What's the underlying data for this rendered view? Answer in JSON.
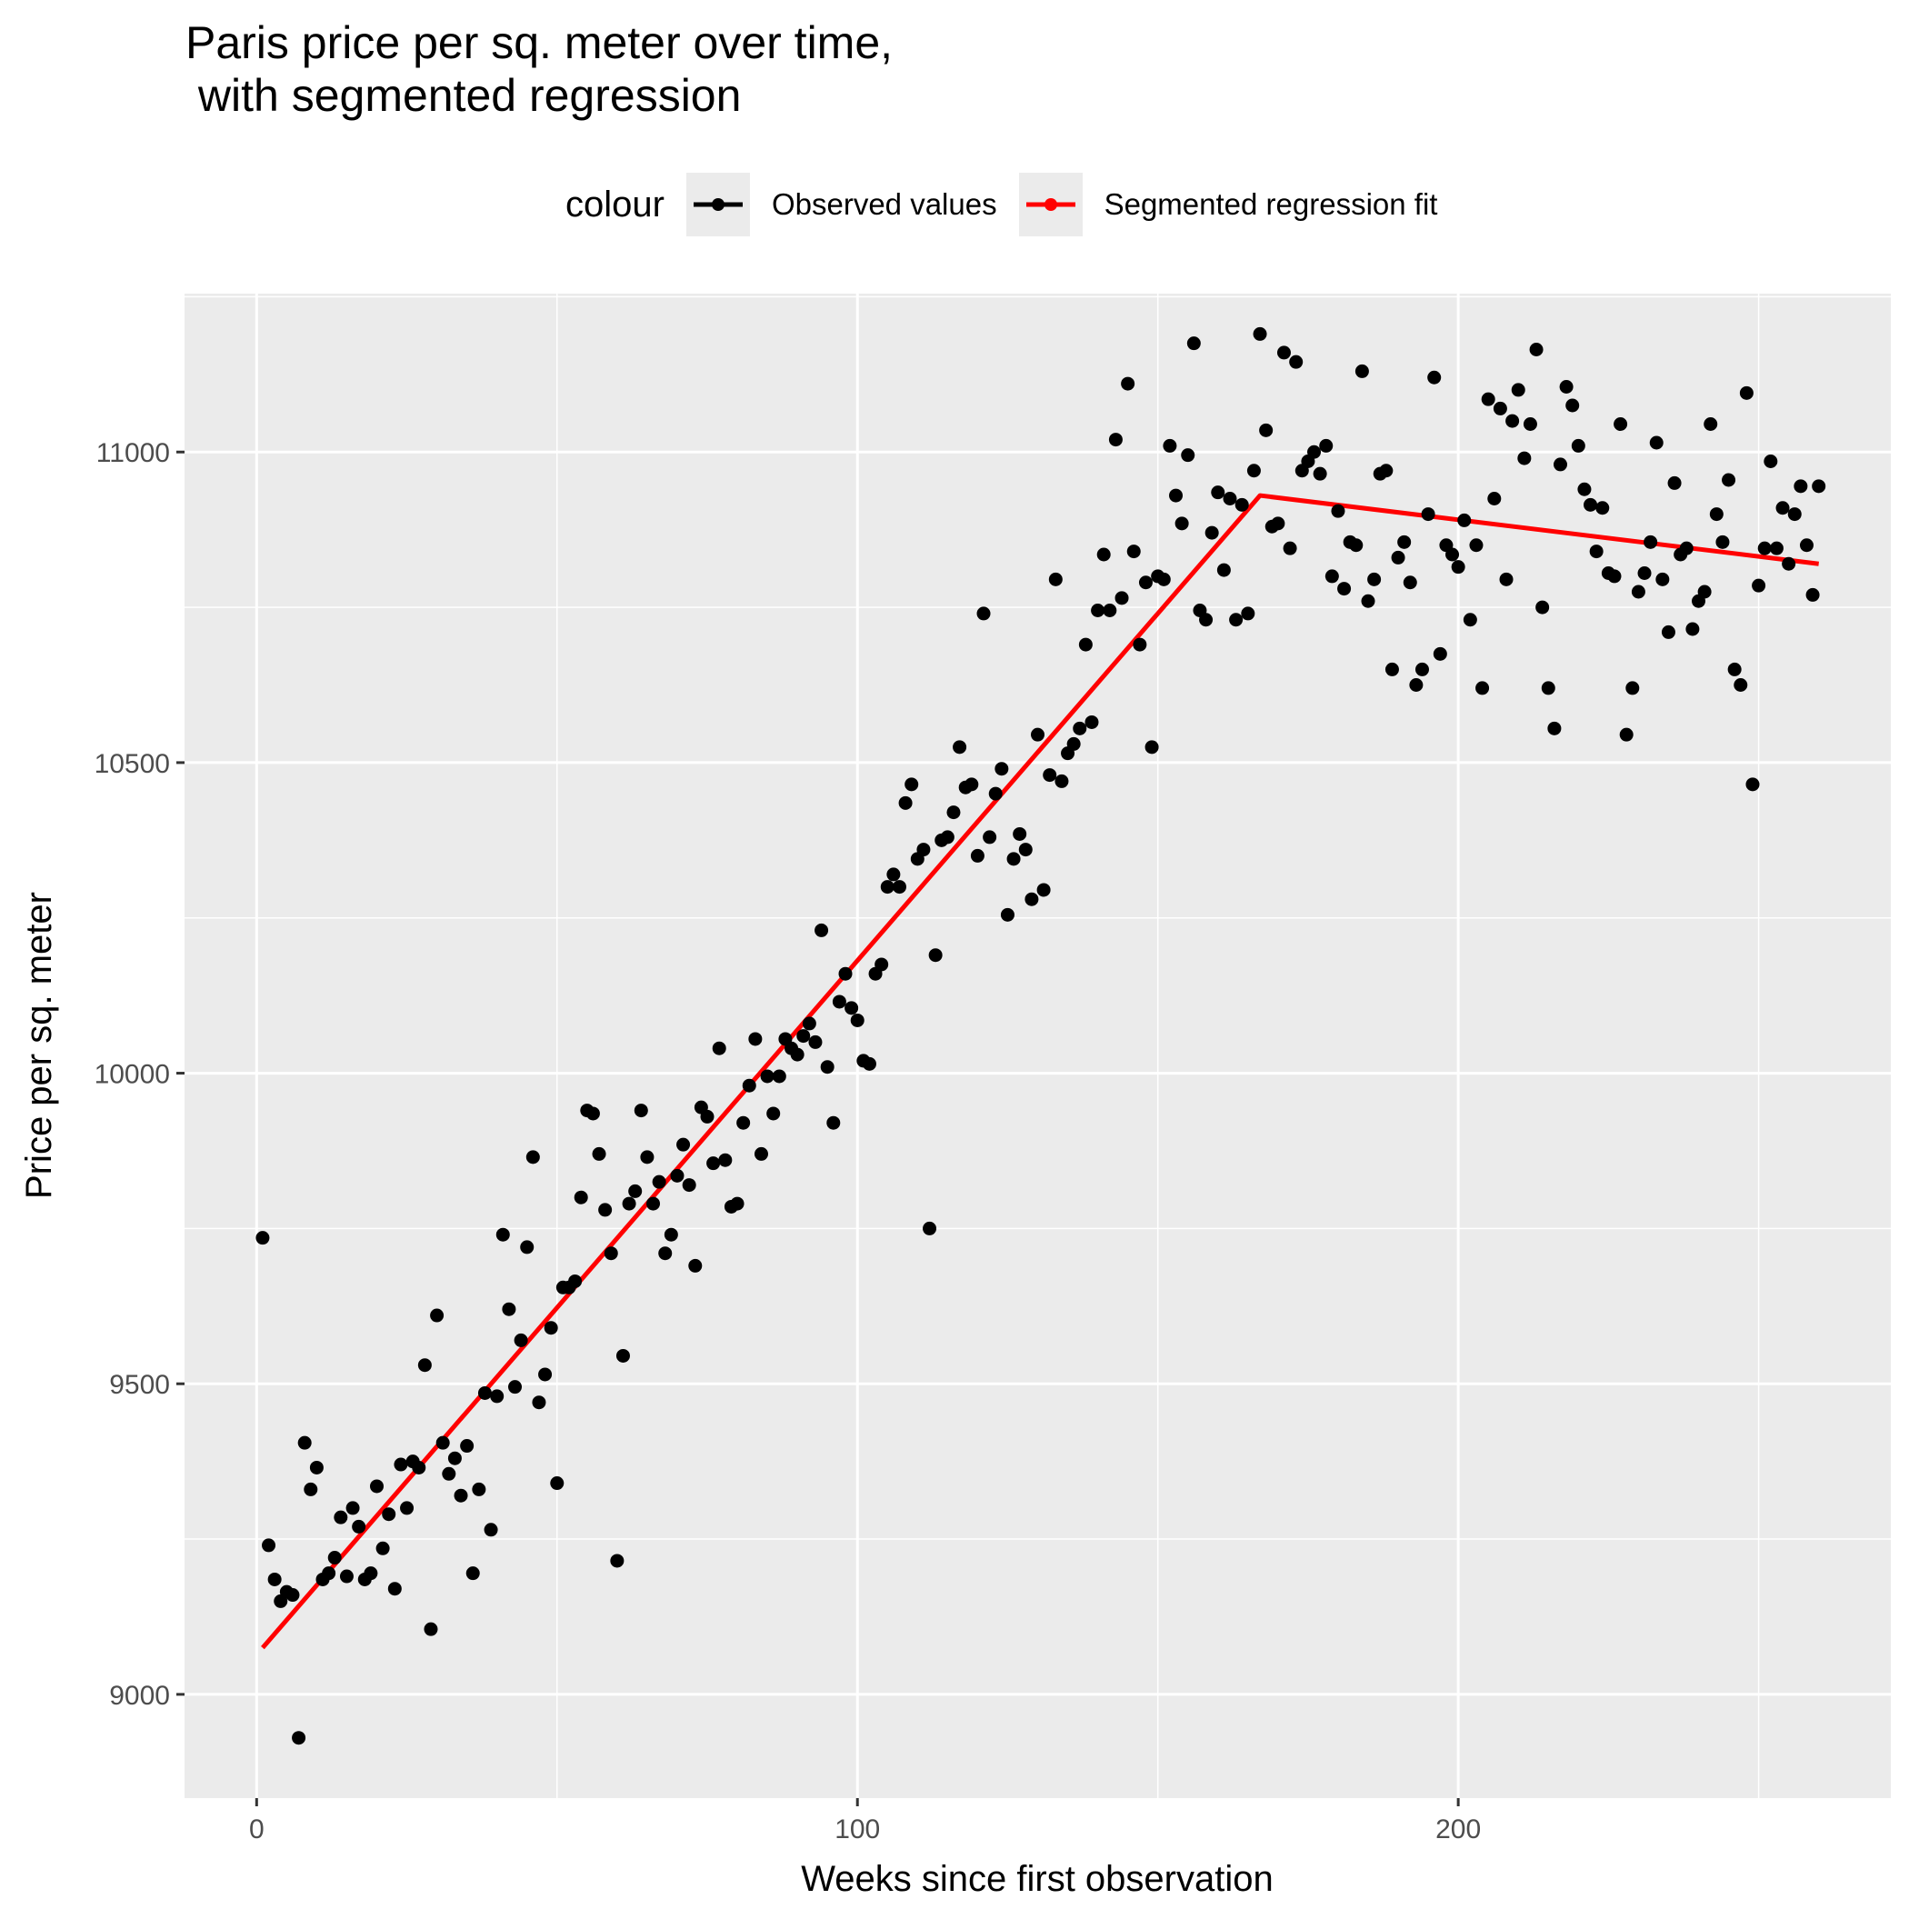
{
  "chart_data": {
    "type": "scatter",
    "title": "Paris price per sq. meter over time,\n with segmented regression",
    "xlabel": "Weeks since first observation",
    "ylabel": "Price per sq. meter",
    "xlim": [
      -12,
      272
    ],
    "ylim": [
      8833,
      11255
    ],
    "x_ticks": [
      0,
      100,
      200
    ],
    "y_ticks": [
      9000,
      9500,
      10000,
      10500,
      11000
    ],
    "grid": true,
    "legend": {
      "title": "colour",
      "position": "top",
      "entries": [
        {
          "label": "Observed values",
          "color": "#000000"
        },
        {
          "label": "Segmented regression fit",
          "color": "#ff0000"
        }
      ]
    },
    "series": [
      {
        "name": "Observed values",
        "color": "#000000",
        "points": [
          [
            1,
            9735
          ],
          [
            2,
            9240
          ],
          [
            3,
            9185
          ],
          [
            4,
            9150
          ],
          [
            5,
            9165
          ],
          [
            6,
            9160
          ],
          [
            7,
            8930
          ],
          [
            8,
            9405
          ],
          [
            9,
            9330
          ],
          [
            10,
            9365
          ],
          [
            11,
            9185
          ],
          [
            12,
            9195
          ],
          [
            13,
            9220
          ],
          [
            14,
            9285
          ],
          [
            15,
            9190
          ],
          [
            16,
            9300
          ],
          [
            17,
            9270
          ],
          [
            18,
            9185
          ],
          [
            19,
            9195
          ],
          [
            20,
            9335
          ],
          [
            21,
            9235
          ],
          [
            22,
            9290
          ],
          [
            23,
            9170
          ],
          [
            24,
            9370
          ],
          [
            25,
            9300
          ],
          [
            26,
            9375
          ],
          [
            27,
            9365
          ],
          [
            28,
            9530
          ],
          [
            29,
            9105
          ],
          [
            30,
            9610
          ],
          [
            31,
            9405
          ],
          [
            32,
            9355
          ],
          [
            33,
            9380
          ],
          [
            34,
            9320
          ],
          [
            35,
            9400
          ],
          [
            36,
            9195
          ],
          [
            37,
            9330
          ],
          [
            38,
            9485
          ],
          [
            39,
            9265
          ],
          [
            40,
            9480
          ],
          [
            41,
            9740
          ],
          [
            42,
            9620
          ],
          [
            43,
            9495
          ],
          [
            44,
            9570
          ],
          [
            45,
            9720
          ],
          [
            46,
            9865
          ],
          [
            47,
            9470
          ],
          [
            48,
            9515
          ],
          [
            49,
            9590
          ],
          [
            50,
            9340
          ],
          [
            51,
            9655
          ],
          [
            52,
            9655
          ],
          [
            53,
            9665
          ],
          [
            54,
            9800
          ],
          [
            55,
            9940
          ],
          [
            56,
            9935
          ],
          [
            57,
            9870
          ],
          [
            58,
            9780
          ],
          [
            59,
            9710
          ],
          [
            60,
            9215
          ],
          [
            61,
            9545
          ],
          [
            62,
            9790
          ],
          [
            63,
            9810
          ],
          [
            64,
            9940
          ],
          [
            65,
            9865
          ],
          [
            66,
            9790
          ],
          [
            67,
            9825
          ],
          [
            68,
            9710
          ],
          [
            69,
            9740
          ],
          [
            70,
            9835
          ],
          [
            71,
            9885
          ],
          [
            72,
            9820
          ],
          [
            73,
            9690
          ],
          [
            74,
            9945
          ],
          [
            75,
            9930
          ],
          [
            76,
            9855
          ],
          [
            77,
            10040
          ],
          [
            78,
            9860
          ],
          [
            79,
            9785
          ],
          [
            80,
            9790
          ],
          [
            81,
            9920
          ],
          [
            82,
            9980
          ],
          [
            83,
            10055
          ],
          [
            84,
            9870
          ],
          [
            85,
            9995
          ],
          [
            86,
            9935
          ],
          [
            87,
            9995
          ],
          [
            88,
            10055
          ],
          [
            89,
            10040
          ],
          [
            90,
            10030
          ],
          [
            91,
            10060
          ],
          [
            92,
            10080
          ],
          [
            93,
            10050
          ],
          [
            94,
            10230
          ],
          [
            95,
            10010
          ],
          [
            96,
            9920
          ],
          [
            97,
            10115
          ],
          [
            98,
            10160
          ],
          [
            99,
            10105
          ],
          [
            100,
            10085
          ],
          [
            101,
            10020
          ],
          [
            102,
            10015
          ],
          [
            103,
            10160
          ],
          [
            104,
            10175
          ],
          [
            105,
            10300
          ],
          [
            106,
            10320
          ],
          [
            107,
            10300
          ],
          [
            108,
            10435
          ],
          [
            109,
            10465
          ],
          [
            110,
            10345
          ],
          [
            111,
            10360
          ],
          [
            112,
            9750
          ],
          [
            113,
            10190
          ],
          [
            114,
            10375
          ],
          [
            115,
            10380
          ],
          [
            116,
            10420
          ],
          [
            117,
            10525
          ],
          [
            118,
            10460
          ],
          [
            119,
            10465
          ],
          [
            120,
            10350
          ],
          [
            121,
            10740
          ],
          [
            122,
            10380
          ],
          [
            123,
            10450
          ],
          [
            124,
            10490
          ],
          [
            125,
            10255
          ],
          [
            126,
            10345
          ],
          [
            127,
            10385
          ],
          [
            128,
            10360
          ],
          [
            129,
            10280
          ],
          [
            130,
            10545
          ],
          [
            131,
            10295
          ],
          [
            132,
            10480
          ],
          [
            133,
            10795
          ],
          [
            134,
            10470
          ],
          [
            135,
            10515
          ],
          [
            136,
            10530
          ],
          [
            137,
            10555
          ],
          [
            138,
            10690
          ],
          [
            139,
            10565
          ],
          [
            140,
            10745
          ],
          [
            141,
            10835
          ],
          [
            142,
            10745
          ],
          [
            143,
            11020
          ],
          [
            144,
            10765
          ],
          [
            145,
            11110
          ],
          [
            146,
            10840
          ],
          [
            147,
            10690
          ],
          [
            148,
            10790
          ],
          [
            149,
            10525
          ],
          [
            150,
            10800
          ],
          [
            151,
            10795
          ],
          [
            152,
            11010
          ],
          [
            153,
            10930
          ],
          [
            154,
            10885
          ],
          [
            155,
            10995
          ],
          [
            156,
            11175
          ],
          [
            157,
            10745
          ],
          [
            158,
            10730
          ],
          [
            159,
            10870
          ],
          [
            160,
            10935
          ],
          [
            161,
            10810
          ],
          [
            162,
            10925
          ],
          [
            163,
            10730
          ],
          [
            164,
            10915
          ],
          [
            165,
            10740
          ],
          [
            166,
            10970
          ],
          [
            167,
            11190
          ],
          [
            168,
            11035
          ],
          [
            169,
            10880
          ],
          [
            170,
            10885
          ],
          [
            171,
            11160
          ],
          [
            172,
            10845
          ],
          [
            173,
            11145
          ],
          [
            174,
            10970
          ],
          [
            175,
            10985
          ],
          [
            176,
            11000
          ],
          [
            177,
            10965
          ],
          [
            178,
            11010
          ],
          [
            179,
            10800
          ],
          [
            180,
            10905
          ],
          [
            181,
            10780
          ],
          [
            182,
            10855
          ],
          [
            183,
            10850
          ],
          [
            184,
            11130
          ],
          [
            185,
            10760
          ],
          [
            186,
            10795
          ],
          [
            187,
            10965
          ],
          [
            188,
            10970
          ],
          [
            189,
            10650
          ],
          [
            190,
            10830
          ],
          [
            191,
            10855
          ],
          [
            192,
            10790
          ],
          [
            193,
            10625
          ],
          [
            194,
            10650
          ],
          [
            195,
            10900
          ],
          [
            196,
            11120
          ],
          [
            197,
            10675
          ],
          [
            198,
            10850
          ],
          [
            199,
            10835
          ],
          [
            200,
            10815
          ],
          [
            201,
            10890
          ],
          [
            202,
            10730
          ],
          [
            203,
            10850
          ],
          [
            204,
            10620
          ],
          [
            205,
            11085
          ],
          [
            206,
            10925
          ],
          [
            207,
            11070
          ],
          [
            208,
            10795
          ],
          [
            209,
            11050
          ],
          [
            210,
            11100
          ],
          [
            211,
            10990
          ],
          [
            212,
            11045
          ],
          [
            213,
            11165
          ],
          [
            214,
            10750
          ],
          [
            215,
            10620
          ],
          [
            216,
            10555
          ],
          [
            217,
            10980
          ],
          [
            218,
            11105
          ],
          [
            219,
            11075
          ],
          [
            220,
            11010
          ],
          [
            221,
            10940
          ],
          [
            222,
            10915
          ],
          [
            223,
            10840
          ],
          [
            224,
            10910
          ],
          [
            225,
            10805
          ],
          [
            226,
            10800
          ],
          [
            227,
            11045
          ],
          [
            228,
            10545
          ],
          [
            229,
            10620
          ],
          [
            230,
            10775
          ],
          [
            231,
            10805
          ],
          [
            232,
            10855
          ],
          [
            233,
            11015
          ],
          [
            234,
            10795
          ],
          [
            235,
            10710
          ],
          [
            236,
            10950
          ],
          [
            237,
            10835
          ],
          [
            238,
            10845
          ],
          [
            239,
            10715
          ],
          [
            240,
            10760
          ],
          [
            241,
            10775
          ],
          [
            242,
            11045
          ],
          [
            243,
            10900
          ],
          [
            244,
            10855
          ],
          [
            245,
            10955
          ],
          [
            246,
            10650
          ],
          [
            247,
            10625
          ],
          [
            248,
            11095
          ],
          [
            249,
            10465
          ],
          [
            250,
            10785
          ],
          [
            251,
            10845
          ],
          [
            252,
            10985
          ],
          [
            253,
            10845
          ],
          [
            254,
            10910
          ],
          [
            255,
            10820
          ],
          [
            256,
            10900
          ],
          [
            257,
            10945
          ],
          [
            258,
            10850
          ],
          [
            259,
            10770
          ],
          [
            260,
            10945
          ]
        ]
      },
      {
        "name": "Segmented regression fit",
        "color": "#ff0000",
        "points": [
          [
            1,
            9075
          ],
          [
            167,
            10930
          ],
          [
            260,
            10820
          ]
        ]
      }
    ]
  }
}
